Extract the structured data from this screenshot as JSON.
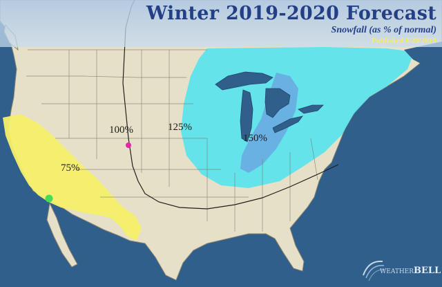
{
  "header": {
    "title": "Winter 2019-2020 Forecast",
    "subtitle": "Snowfall (as % of normal)",
    "published": "Published 8/29/2019"
  },
  "zones": [
    {
      "label": "100%"
    },
    {
      "label": "125%"
    },
    {
      "label": "150%"
    },
    {
      "label": "75%"
    }
  ],
  "logo": {
    "text_small": "WEATHER",
    "text_big": "BELL"
  },
  "colors": {
    "ocean": "#2f5f8a",
    "land": "#e6e0c8",
    "above_normal": "#59e3ee",
    "well_above_normal": "#6aaee3",
    "below_normal": "#f5ef6b",
    "title": "#233f86",
    "published": "#f4ef5c",
    "marker_magenta": "#ee22aa",
    "marker_green": "#44dd55"
  }
}
